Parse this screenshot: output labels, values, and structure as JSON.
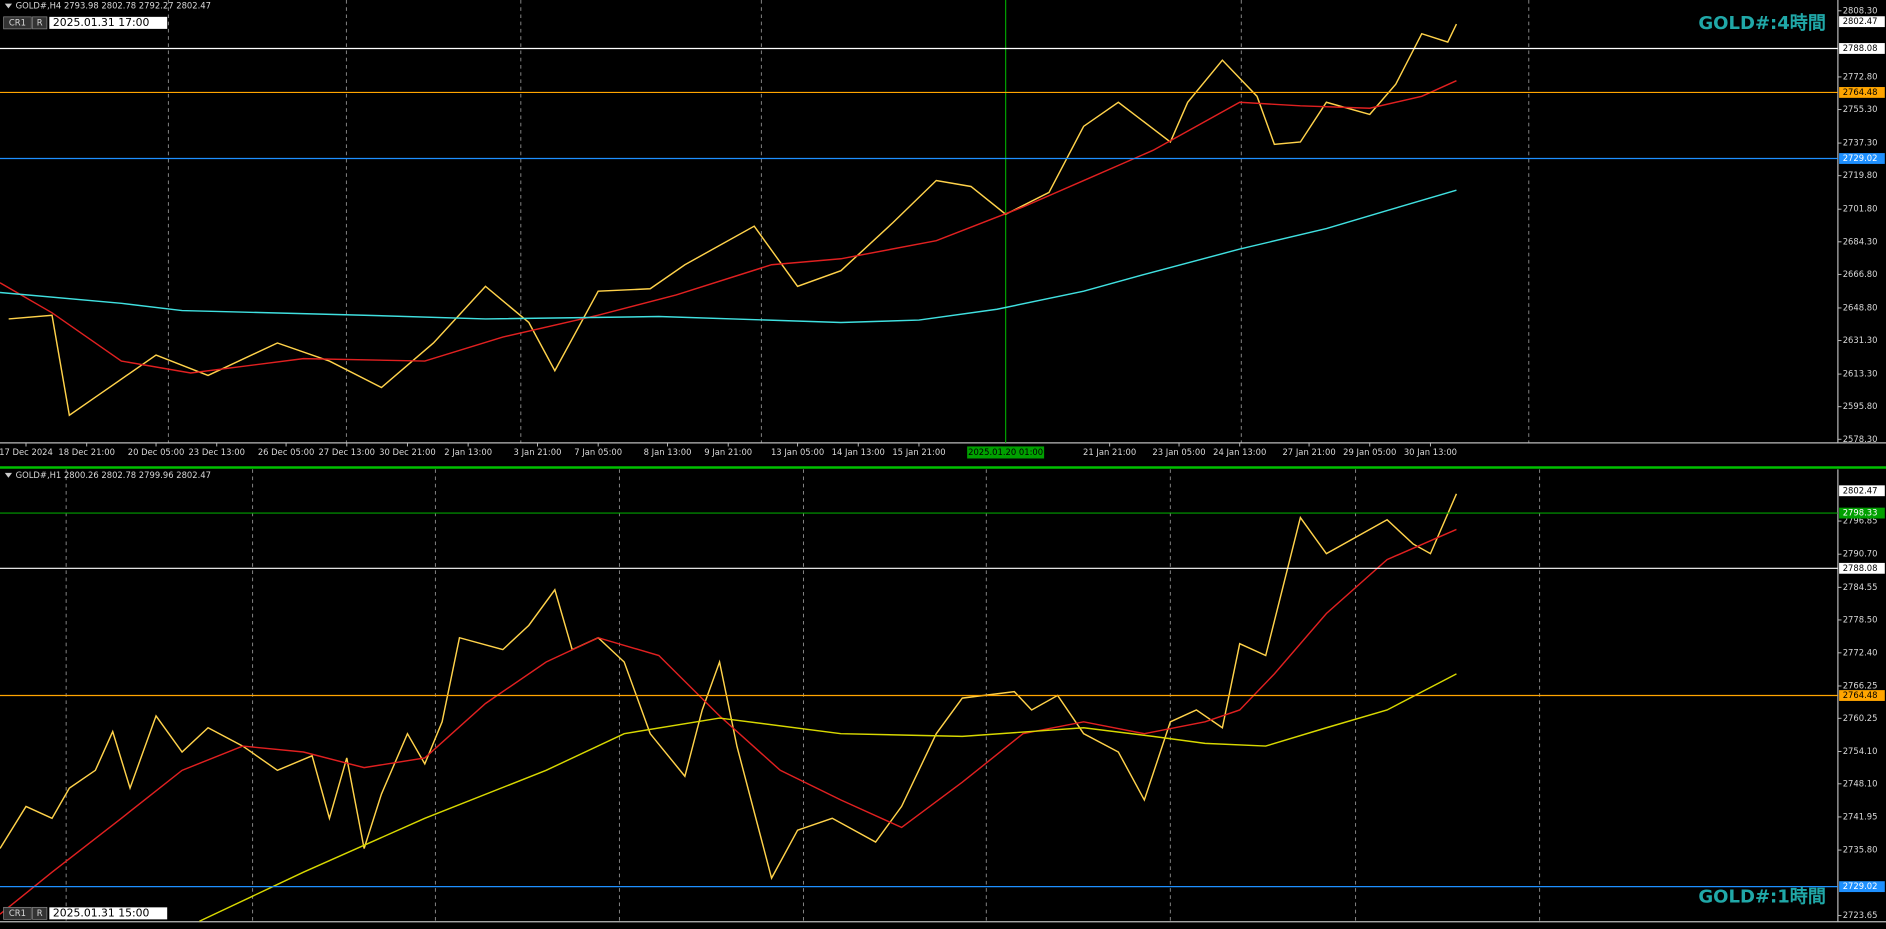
{
  "chart_data": [
    {
      "type": "line",
      "header": "GOLD#,H4 2793.98 2802.78 2792.27 2802.47",
      "buttons": [
        "CR1",
        "R"
      ],
      "time_label": "2025.01.31 17:00",
      "title": "GOLD#:4時間",
      "xlim": [
        0,
        212
      ],
      "ylim": [
        2576.4,
        2814.1
      ],
      "yticks": [
        {
          "value": 2808.3,
          "label": "2808.30"
        },
        {
          "value": 2772.8,
          "label": "2772.80"
        },
        {
          "value": 2755.3,
          "label": "2755.30"
        },
        {
          "value": 2737.3,
          "label": "2737.30"
        },
        {
          "value": 2719.8,
          "label": "2719.80"
        },
        {
          "value": 2701.8,
          "label": "2701.80"
        },
        {
          "value": 2684.3,
          "label": "2684.30"
        },
        {
          "value": 2666.8,
          "label": "2666.80"
        },
        {
          "value": 2648.8,
          "label": "2648.80"
        },
        {
          "value": 2631.3,
          "label": "2631.30"
        },
        {
          "value": 2613.3,
          "label": "2613.30"
        },
        {
          "value": 2595.8,
          "label": "2595.80"
        },
        {
          "value": 2578.3,
          "label": "2578.30"
        }
      ],
      "xticks": [
        {
          "value": 3,
          "label": "17 Dec 2024"
        },
        {
          "value": 10,
          "label": "18 Dec 21:00"
        },
        {
          "value": 18,
          "label": "20 Dec 05:00"
        },
        {
          "value": 25,
          "label": "23 Dec 13:00"
        },
        {
          "value": 33,
          "label": "26 Dec 05:00"
        },
        {
          "value": 40,
          "label": "27 Dec 13:00"
        },
        {
          "value": 47,
          "label": "30 Dec 21:00"
        },
        {
          "value": 54,
          "label": "2 Jan 13:00"
        },
        {
          "value": 62,
          "label": "3 Jan 21:00"
        },
        {
          "value": 69,
          "label": "7 Jan 05:00"
        },
        {
          "value": 77,
          "label": "8 Jan 13:00"
        },
        {
          "value": 84,
          "label": "9 Jan 21:00"
        },
        {
          "value": 92,
          "label": "13 Jan 05:00"
        },
        {
          "value": 99,
          "label": "14 Jan 13:00"
        },
        {
          "value": 106,
          "label": "15 Jan 21:00"
        },
        {
          "value": 128,
          "label": "21 Jan 21:00"
        },
        {
          "value": 136,
          "label": "23 Jan 05:00"
        },
        {
          "value": 143,
          "label": "24 Jan 13:00"
        },
        {
          "value": 151,
          "label": "27 Jan 21:00"
        },
        {
          "value": 158,
          "label": "29 Jan 05:00"
        },
        {
          "value": 165,
          "label": "30 Jan 13:00"
        }
      ],
      "crosshair": {
        "value": 116,
        "label": "2025.01.20 01:00"
      },
      "levels": [
        {
          "value": 2788.08,
          "color": "#ffffff"
        },
        {
          "value": 2764.48,
          "color": "#ffa500"
        },
        {
          "value": 2729.02,
          "color": "#1e90ff"
        }
      ],
      "current_price": 2802.47,
      "series": [
        {
          "color": "#ffd24a",
          "x": [
            1,
            6,
            8,
            11,
            18,
            24,
            32,
            38,
            44,
            50,
            56,
            61,
            64,
            69,
            75,
            79,
            87,
            92,
            97,
            103,
            108,
            112,
            116,
            121,
            125,
            129,
            135,
            137,
            141,
            145,
            147,
            150,
            153,
            158,
            161,
            164,
            167,
            168
          ],
          "values": [
            2642.9,
            2644.9,
            2591.2,
            2600.9,
            2623.5,
            2612.6,
            2630.0,
            2620.3,
            2606.1,
            2630.0,
            2660.4,
            2641.0,
            2615.1,
            2657.8,
            2659.1,
            2672.0,
            2692.7,
            2660.4,
            2668.8,
            2694.6,
            2717.2,
            2714.0,
            2699.1,
            2710.8,
            2746.3,
            2759.2,
            2737.9,
            2759.2,
            2781.8,
            2762.4,
            2736.6,
            2737.9,
            2759.2,
            2752.7,
            2768.9,
            2796.0,
            2791.5,
            2801.2
          ]
        },
        {
          "color": "#e02020",
          "x": [
            0,
            6,
            14,
            22,
            35,
            49,
            58,
            69,
            78,
            89,
            97,
            108,
            118,
            125,
            133,
            143,
            150,
            158,
            164,
            168
          ],
          "values": [
            2662.3,
            2646.2,
            2620.3,
            2613.9,
            2621.6,
            2620.3,
            2633.2,
            2644.9,
            2655.8,
            2672.0,
            2675.2,
            2684.9,
            2703.0,
            2717.2,
            2733.4,
            2759.2,
            2757.3,
            2756.0,
            2762.4,
            2770.8
          ]
        },
        {
          "color": "#40e0e0",
          "x": [
            0,
            14,
            21,
            42,
            56,
            76,
            97,
            106,
            115,
            125,
            132,
            143,
            153,
            160,
            168
          ],
          "values": [
            2657.1,
            2651.3,
            2647.4,
            2644.9,
            2642.9,
            2644.2,
            2641.0,
            2642.3,
            2648.1,
            2657.8,
            2666.8,
            2680.4,
            2691.4,
            2701.1,
            2712.0
          ]
        }
      ]
    },
    {
      "type": "line",
      "header": "GOLD#,H1 2800.26 2802.78 2799.96 2802.47",
      "buttons": [
        "CR1",
        "R"
      ],
      "time_label": "2025.01.31 15:00",
      "title": "GOLD#:1時間",
      "xlim": [
        0,
        212
      ],
      "ylim": [
        2722.5,
        2806.45
      ],
      "yticks": [
        2796.85,
        {
          "value": 2790.7,
          "label": "2790.70"
        },
        2784.55,
        {
          "value": 2778.5,
          "label": "2778.50"
        },
        {
          "value": 2772.4,
          "label": "2772.40"
        },
        2766.25,
        {
          "value": 2760.25,
          "label": "2760.25"
        },
        {
          "value": 2754.1,
          "label": "2754.10"
        },
        {
          "value": 2748.1,
          "label": "2748.10"
        },
        2741.95,
        {
          "value": 2735.8,
          "label": "2735.80"
        },
        2723.65
      ],
      "levels": [
        {
          "value": 2798.33,
          "color": "#00a000"
        },
        {
          "value": 2788.08,
          "color": "#ffffff"
        },
        {
          "value": 2764.48,
          "color": "#ffa500"
        },
        {
          "value": 2729.02,
          "color": "#1e90ff"
        }
      ],
      "current_price": 2802.47,
      "series": [
        {
          "color": "#ffd24a",
          "x": [
            0,
            3,
            6,
            8,
            11,
            13,
            15,
            18,
            21,
            24,
            28,
            32,
            36,
            38,
            40,
            42,
            44,
            47,
            49,
            51,
            53,
            58,
            61,
            64,
            66,
            69,
            72,
            75,
            79,
            81,
            83,
            85,
            89,
            92,
            96,
            101,
            104,
            108,
            111,
            117,
            119,
            122,
            125,
            129,
            132,
            135,
            138,
            141,
            143,
            146,
            150,
            153,
            160,
            163,
            165,
            168
          ],
          "values": [
            2736.1,
            2743.9,
            2741.7,
            2747.3,
            2750.6,
            2757.8,
            2747.3,
            2760.7,
            2754.0,
            2758.5,
            2755.1,
            2750.6,
            2753.3,
            2741.7,
            2752.9,
            2736.1,
            2746.2,
            2757.4,
            2751.8,
            2759.6,
            2775.2,
            2773.0,
            2777.5,
            2784.1,
            2773.0,
            2775.2,
            2770.7,
            2757.4,
            2749.5,
            2761.8,
            2770.7,
            2755.1,
            2730.6,
            2739.5,
            2741.7,
            2737.3,
            2743.9,
            2757.4,
            2764.0,
            2765.2,
            2761.8,
            2764.5,
            2757.4,
            2754.0,
            2745.1,
            2759.6,
            2761.8,
            2758.5,
            2774.1,
            2771.9,
            2797.5,
            2790.8,
            2797.1,
            2792.6,
            2790.8,
            2801.9
          ]
        },
        {
          "color": "#e02020",
          "x": [
            0,
            6,
            14,
            21,
            28,
            35,
            42,
            49,
            56,
            63,
            69,
            76,
            83,
            90,
            97,
            104,
            111,
            118,
            125,
            132,
            139,
            143,
            147,
            153,
            160,
            168
          ],
          "values": [
            2723.9,
            2731.7,
            2741.7,
            2750.6,
            2755.1,
            2754.0,
            2751.1,
            2752.9,
            2763.0,
            2770.7,
            2775.2,
            2771.9,
            2760.7,
            2750.6,
            2745.1,
            2740.0,
            2748.4,
            2757.4,
            2759.6,
            2757.4,
            2759.6,
            2761.8,
            2768.5,
            2779.7,
            2789.7,
            2795.3
          ]
        },
        {
          "color": "#d8d800",
          "x": [
            23,
            35,
            49,
            63,
            72,
            83,
            97,
            111,
            125,
            133,
            139,
            146,
            153,
            160,
            168
          ],
          "values": [
            2722.6,
            2731.7,
            2741.7,
            2750.6,
            2757.4,
            2760.3,
            2757.4,
            2756.9,
            2758.5,
            2756.9,
            2755.6,
            2755.1,
            2758.5,
            2761.8,
            2768.5
          ]
        }
      ]
    }
  ]
}
